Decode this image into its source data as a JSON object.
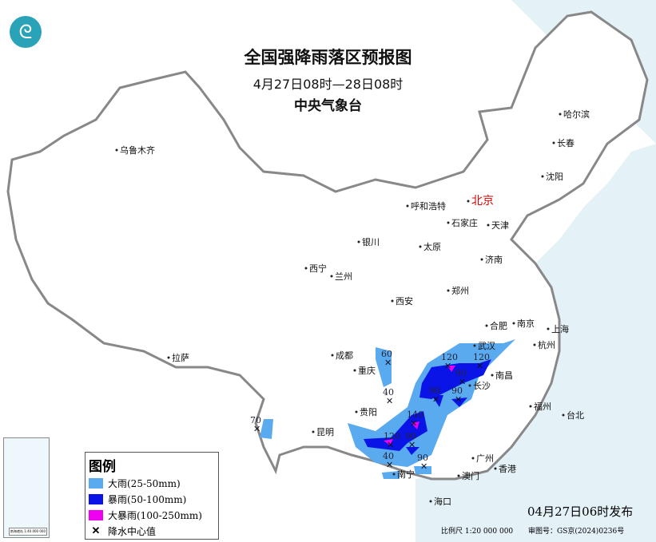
{
  "title": "全国强降雨落区预报图",
  "period": "4月27日08时—28日08时",
  "agency": "中央气象台",
  "logo_icon": "cma-logo-icon",
  "legend": {
    "title": "图例",
    "items": [
      {
        "label": "大雨(25-50mm)",
        "color": "#5aaaf0"
      },
      {
        "label": "暴雨(50-100mm)",
        "color": "#0a14e6"
      },
      {
        "label": "大暴雨(100-250mm)",
        "color": "#f000f0"
      },
      {
        "label": "降水中心值",
        "icon": "x-mark-icon"
      }
    ]
  },
  "inset": {
    "label": "南海诸岛 1:40 000 000"
  },
  "issued": "04月27日06时发布",
  "footer": {
    "scale": "比例尺 1:20 000 000",
    "approval": "审图号：GS京(2024)0236号"
  },
  "cities": [
    {
      "name": "乌鲁木齐"
    },
    {
      "name": "哈尔滨"
    },
    {
      "name": "长春"
    },
    {
      "name": "沈阳"
    },
    {
      "name": "北京",
      "capital": true
    },
    {
      "name": "天津"
    },
    {
      "name": "呼和浩特"
    },
    {
      "name": "石家庄"
    },
    {
      "name": "太原"
    },
    {
      "name": "济南"
    },
    {
      "name": "银川"
    },
    {
      "name": "西宁"
    },
    {
      "name": "兰州"
    },
    {
      "name": "郑州"
    },
    {
      "name": "西安"
    },
    {
      "name": "合肥"
    },
    {
      "name": "南京"
    },
    {
      "name": "上海"
    },
    {
      "name": "武汉"
    },
    {
      "name": "杭州"
    },
    {
      "name": "成都"
    },
    {
      "name": "重庆"
    },
    {
      "name": "长沙"
    },
    {
      "name": "南昌"
    },
    {
      "name": "拉萨"
    },
    {
      "name": "贵阳"
    },
    {
      "name": "福州"
    },
    {
      "name": "台北"
    },
    {
      "name": "昆明"
    },
    {
      "name": "南宁"
    },
    {
      "name": "广州"
    },
    {
      "name": "香港"
    },
    {
      "name": "澳门"
    },
    {
      "name": "海口"
    }
  ],
  "rain_centers": [
    "60",
    "120",
    "120",
    "90",
    "90",
    "90",
    "140",
    "120",
    "90",
    "40",
    "90",
    "40",
    "70"
  ]
}
